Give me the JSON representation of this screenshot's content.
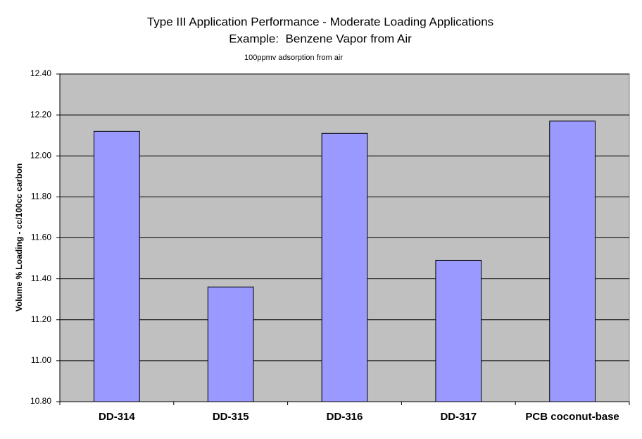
{
  "chart_data": {
    "type": "bar",
    "title": [
      "Type III Application Performance - Moderate Loading Applications",
      "Example:  Benzene Vapor from Air"
    ],
    "subtitle": "100ppmv adsorption from air",
    "y_label": "Volume % Loading - cc/100cc carbon",
    "categories": [
      "DD-314",
      "DD-315",
      "DD-316",
      "DD-317",
      "PCB coconut-base"
    ],
    "values": [
      12.12,
      11.36,
      12.11,
      11.49,
      12.17
    ],
    "color": "#9999ff",
    "ylim": [
      10.8,
      12.4
    ],
    "yticks": [
      {
        "value": 10.8,
        "label": "10.80"
      },
      {
        "value": 11.0,
        "label": "11.00"
      },
      {
        "value": 11.2,
        "label": "11.20"
      },
      {
        "value": 11.4,
        "label": "11.40"
      },
      {
        "value": 11.6,
        "label": "11.60"
      },
      {
        "value": 11.8,
        "label": "11.80"
      },
      {
        "value": 12.0,
        "label": "12.00"
      },
      {
        "value": 12.2,
        "label": "12.20"
      },
      {
        "value": 12.4,
        "label": "12.40"
      }
    ],
    "grid": true
  }
}
